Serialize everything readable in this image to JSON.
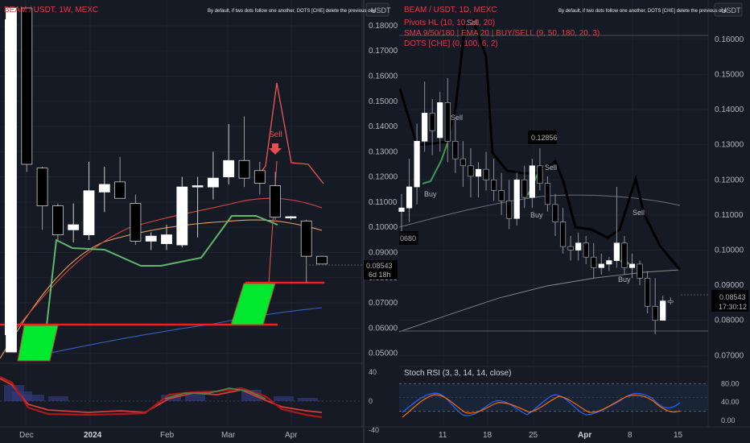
{
  "left": {
    "header": "BEAM / USDT, 1W, MEXC",
    "notice": "By default, if two dots follow one another, DOTS [CHE] delete the previous one",
    "currency": "USDT",
    "price_ticks": [
      "0.18000",
      "0.17000",
      "0.16000",
      "0.15000",
      "0.14000",
      "0.13000",
      "0.12000",
      "0.11000",
      "0.10000",
      "0.09000",
      "0.08000",
      "0.07000",
      "0.06000",
      "0.05000"
    ],
    "last_price": "0.08543",
    "countdown": "6d 18h",
    "sell_label": "Sell",
    "osc_ticks": [
      "40",
      "0",
      "-40"
    ],
    "x_labels": [
      "Dec",
      "2024",
      "Feb",
      "Mar",
      "Apr"
    ]
  },
  "right": {
    "header": "BEAM / USDT, 1D, MEXC",
    "notice": "By default, if two dots follow one another, DOTS [CHE] delete the previous one",
    "currency": "USDT",
    "indicators": [
      "Pivots HL (10, 10, 10, 20)",
      "SMA 9/50/180 | EMA 20 | BUY/SELL (9, 50, 180, 20, 3)",
      "DOTS [CHE] (0, 100, 6, 2)"
    ],
    "price_ticks": [
      "0.16000",
      "0.15000",
      "0.14000",
      "0.13000",
      "0.12000",
      "0.11000",
      "0.10000",
      "0.09000",
      "0.08000",
      "0.07000"
    ],
    "last_price": "0.08543",
    "countdown": "17:30:12",
    "pivot_high": "0.12856",
    "pivot_left": "0680",
    "sell_label_1": "Sell",
    "sell_label_2": "Sell",
    "sell_label_3": "Sell",
    "buy_label_1": "Buy",
    "buy_label_2": "Buy",
    "buy_label_3": "Buy",
    "stoch_label": "Stoch RSI (3, 3, 14, 14, close)",
    "stoch_ticks": [
      "80.00",
      "40.00",
      "0.00"
    ],
    "x_labels": [
      "11",
      "18",
      "25",
      "Apr",
      "8",
      "15"
    ]
  },
  "chart_data": [
    {
      "type": "candlestick",
      "title": "BEAM / USDT, 1W, MEXC",
      "ylim": [
        0.047,
        0.187
      ],
      "candles": [
        {
          "o": 0.0505,
          "h": 0.187,
          "l": 0.0505,
          "c": 0.187
        },
        {
          "o": 0.187,
          "h": 0.187,
          "l": 0.122,
          "c": 0.125
        },
        {
          "o": 0.1235,
          "h": 0.124,
          "l": 0.099,
          "c": 0.1085
        },
        {
          "o": 0.1085,
          "h": 0.1095,
          "l": 0.095,
          "c": 0.097
        },
        {
          "o": 0.099,
          "h": 0.1095,
          "l": 0.094,
          "c": 0.101
        },
        {
          "o": 0.097,
          "h": 0.126,
          "l": 0.095,
          "c": 0.1145
        },
        {
          "o": 0.114,
          "h": 0.124,
          "l": 0.106,
          "c": 0.117
        },
        {
          "o": 0.118,
          "h": 0.128,
          "l": 0.112,
          "c": 0.1115
        },
        {
          "o": 0.1095,
          "h": 0.113,
          "l": 0.093,
          "c": 0.0945
        },
        {
          "o": 0.0945,
          "h": 0.098,
          "l": 0.091,
          "c": 0.0965
        },
        {
          "o": 0.0935,
          "h": 0.101,
          "l": 0.091,
          "c": 0.097
        },
        {
          "o": 0.093,
          "h": 0.12,
          "l": 0.092,
          "c": 0.116
        },
        {
          "o": 0.116,
          "h": 0.12,
          "l": 0.096,
          "c": 0.1165
        },
        {
          "o": 0.116,
          "h": 0.13,
          "l": 0.111,
          "c": 0.1195
        },
        {
          "o": 0.12,
          "h": 0.141,
          "l": 0.117,
          "c": 0.1265
        },
        {
          "o": 0.1265,
          "h": 0.144,
          "l": 0.116,
          "c": 0.1195
        },
        {
          "o": 0.1225,
          "h": 0.126,
          "l": 0.113,
          "c": 0.1175
        },
        {
          "o": 0.1165,
          "h": 0.122,
          "l": 0.103,
          "c": 0.104
        },
        {
          "o": 0.104,
          "h": 0.1045,
          "l": 0.103,
          "c": 0.1042
        },
        {
          "o": 0.1025,
          "h": 0.103,
          "l": 0.078,
          "c": 0.0885
        },
        {
          "o": 0.0885,
          "h": 0.0887,
          "l": 0.0858,
          "c": 0.08543
        }
      ]
    },
    {
      "type": "candlestick",
      "title": "BEAM / USDT, 1D, MEXC",
      "ylim": [
        0.068,
        0.168
      ],
      "candles": [
        {
          "o": 0.111,
          "h": 0.116,
          "l": 0.104,
          "c": 0.112
        },
        {
          "o": 0.112,
          "h": 0.126,
          "l": 0.108,
          "c": 0.118
        },
        {
          "o": 0.118,
          "h": 0.136,
          "l": 0.113,
          "c": 0.131
        },
        {
          "o": 0.131,
          "h": 0.148,
          "l": 0.128,
          "c": 0.139
        },
        {
          "o": 0.139,
          "h": 0.143,
          "l": 0.127,
          "c": 0.134
        },
        {
          "o": 0.132,
          "h": 0.145,
          "l": 0.128,
          "c": 0.142
        },
        {
          "o": 0.142,
          "h": 0.149,
          "l": 0.125,
          "c": 0.131
        },
        {
          "o": 0.131,
          "h": 0.137,
          "l": 0.122,
          "c": 0.126
        },
        {
          "o": 0.126,
          "h": 0.131,
          "l": 0.118,
          "c": 0.124
        },
        {
          "o": 0.124,
          "h": 0.129,
          "l": 0.115,
          "c": 0.121
        },
        {
          "o": 0.121,
          "h": 0.125,
          "l": 0.115,
          "c": 0.123
        },
        {
          "o": 0.123,
          "h": 0.128,
          "l": 0.117,
          "c": 0.12
        },
        {
          "o": 0.12,
          "h": 0.126,
          "l": 0.114,
          "c": 0.117
        },
        {
          "o": 0.117,
          "h": 0.122,
          "l": 0.11,
          "c": 0.114
        },
        {
          "o": 0.114,
          "h": 0.12,
          "l": 0.106,
          "c": 0.109
        },
        {
          "o": 0.109,
          "h": 0.122,
          "l": 0.107,
          "c": 0.12
        },
        {
          "o": 0.12,
          "h": 0.124,
          "l": 0.112,
          "c": 0.115
        },
        {
          "o": 0.115,
          "h": 0.126,
          "l": 0.112,
          "c": 0.124
        },
        {
          "o": 0.124,
          "h": 0.129,
          "l": 0.117,
          "c": 0.119
        },
        {
          "o": 0.119,
          "h": 0.121,
          "l": 0.111,
          "c": 0.113
        },
        {
          "o": 0.113,
          "h": 0.116,
          "l": 0.104,
          "c": 0.108
        },
        {
          "o": 0.108,
          "h": 0.112,
          "l": 0.099,
          "c": 0.101
        },
        {
          "o": 0.101,
          "h": 0.104,
          "l": 0.097,
          "c": 0.1
        },
        {
          "o": 0.1,
          "h": 0.105,
          "l": 0.097,
          "c": 0.102
        },
        {
          "o": 0.102,
          "h": 0.104,
          "l": 0.096,
          "c": 0.098
        },
        {
          "o": 0.098,
          "h": 0.102,
          "l": 0.092,
          "c": 0.095
        },
        {
          "o": 0.095,
          "h": 0.099,
          "l": 0.093,
          "c": 0.096
        },
        {
          "o": 0.096,
          "h": 0.098,
          "l": 0.094,
          "c": 0.097
        },
        {
          "o": 0.097,
          "h": 0.118,
          "l": 0.095,
          "c": 0.102
        },
        {
          "o": 0.102,
          "h": 0.104,
          "l": 0.093,
          "c": 0.095
        },
        {
          "o": 0.095,
          "h": 0.099,
          "l": 0.092,
          "c": 0.096
        },
        {
          "o": 0.096,
          "h": 0.097,
          "l": 0.09,
          "c": 0.092
        },
        {
          "o": 0.092,
          "h": 0.094,
          "l": 0.082,
          "c": 0.084
        },
        {
          "o": 0.084,
          "h": 0.092,
          "l": 0.076,
          "c": 0.08
        },
        {
          "o": 0.08,
          "h": 0.087,
          "l": 0.08,
          "c": 0.0855
        },
        {
          "o": 0.0855,
          "h": 0.0865,
          "l": 0.0845,
          "c": 0.08543
        }
      ]
    }
  ],
  "colors": {
    "bg": "#161a25",
    "grid": "#1f2330",
    "text": "#b2b5be",
    "red": "#f23645",
    "candle_up": "#ffffff",
    "candle_down": "#000000",
    "green_fill": "#00e92f",
    "pivot_line": "#000000",
    "buy_green": "#3d9a4f",
    "sell_red": "#e0514f"
  }
}
